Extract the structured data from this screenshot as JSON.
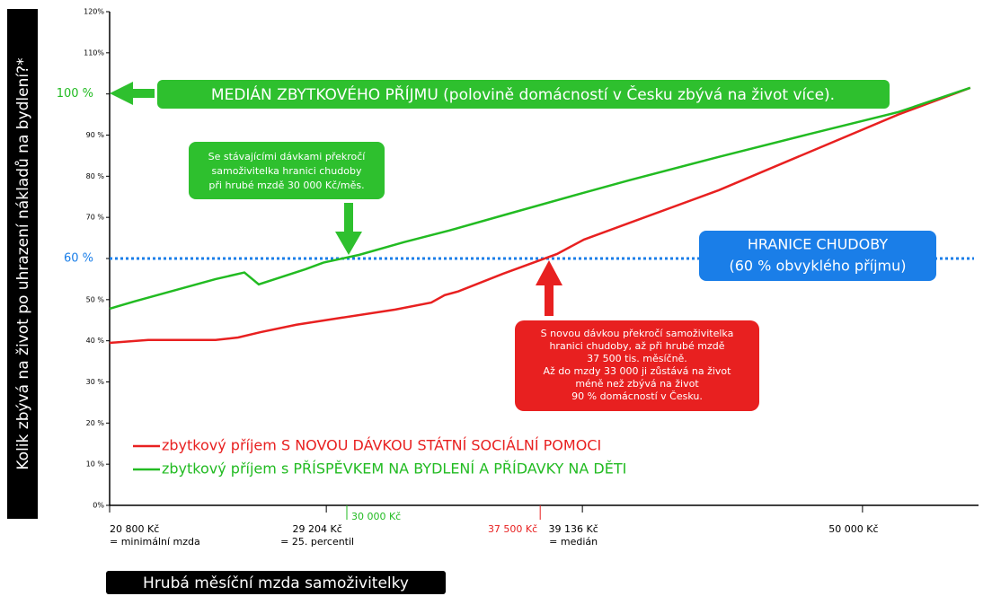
{
  "chart_data": {
    "type": "line",
    "y_axis_label": "Kolik zbývá na život po uhrazení nákladů na bydlení?*",
    "x_axis_label": "Hrubá měsíční mzda samoživitelky",
    "xlim": [
      20800,
      54500
    ],
    "ylim": [
      0,
      120
    ],
    "xticks": [
      {
        "value": 20800,
        "label": "20 800 Kč",
        "note": "= minimální mzda"
      },
      {
        "value": 29204,
        "label": "29 204 Kč",
        "note": "= 25. percentil"
      },
      {
        "value": 30000,
        "label": "30 000 Kč",
        "color": "#22bb22"
      },
      {
        "value": 37500,
        "label": "37 500 Kč",
        "color": "#e82020"
      },
      {
        "value": 39136,
        "label": "39 136 Kč",
        "note": "= medián"
      },
      {
        "value": 50000,
        "label": "50 000 Kč"
      }
    ],
    "yticks": [
      {
        "value": 0,
        "label": "0%"
      },
      {
        "value": 10,
        "label": "10 %"
      },
      {
        "value": 20,
        "label": "20 %"
      },
      {
        "value": 30,
        "label": "30 %"
      },
      {
        "value": 40,
        "label": "40 %"
      },
      {
        "value": 50,
        "label": "50 %"
      },
      {
        "value": 60,
        "label": "60 %",
        "color": "#1a7ee8"
      },
      {
        "value": 70,
        "label": "70 %"
      },
      {
        "value": 80,
        "label": "80 %"
      },
      {
        "value": 90,
        "label": "90 %"
      },
      {
        "value": 100,
        "label": "100 %",
        "color": "#22bb22"
      },
      {
        "value": 110,
        "label": "110%"
      },
      {
        "value": 120,
        "label": "120%"
      }
    ],
    "hline": {
      "value": 60,
      "color": "#1a7ee8"
    },
    "series": [
      {
        "name": "zbytkový příjem S NOVOU DÁVKOU STÁTNÍ SOCIÁLNÍ POMOCI",
        "color": "#e82020",
        "x": [
          20800,
          22298,
          24911,
          25783,
          26654,
          28047,
          29789,
          31880,
          33274,
          33796,
          34319,
          36061,
          38152,
          39197,
          40939,
          44423,
          47908,
          51392,
          54179
        ],
        "values": [
          39.5,
          40.2,
          40.2,
          40.8,
          42.1,
          43.9,
          45.6,
          47.6,
          49.3,
          51.1,
          52,
          56.3,
          61.1,
          64.6,
          68.6,
          76.6,
          85.8,
          95,
          101.5
        ]
      },
      {
        "name": "zbytkový příjem s PŘÍSPĚVKEM NA BYDLENÍ A PŘÍDAVKY NA DĚTI",
        "color": "#22bb22",
        "x": [
          20800,
          21776,
          23169,
          24911,
          26027,
          26584,
          28396,
          29093,
          30486,
          32228,
          33971,
          36061,
          39197,
          40939,
          44423,
          47908,
          51392,
          54179
        ],
        "values": [
          47.8,
          49.6,
          52,
          55,
          56.6,
          53.7,
          57.4,
          59,
          60.9,
          64,
          66.8,
          70.5,
          76,
          79,
          84.7,
          90.2,
          95.6,
          101.5
        ]
      }
    ],
    "annotations": {
      "median": "MEDIÁN ZBYTKOVÉHO PŘÍJMU (polovině domácností v Česku zbývá na život více).",
      "green_note": [
        "Se stávajícími dávkami překročí",
        "samoživitelka hranici chudoby",
        "při hrubé mzdě 30 000 Kč/měs."
      ],
      "poverty": [
        "HRANICE CHUDOBY",
        "(60 % obvyklého příjmu)"
      ],
      "red_note": [
        "S novou dávkou překročí samoživitelka",
        "hranici chudoby, až při hrubé mzdě",
        "37 500 tis. měsíčně.",
        "Až do mzdy 33 000 ji zůstává na život",
        "méně než zbývá na život",
        "90 % domácností v Česku."
      ]
    }
  }
}
